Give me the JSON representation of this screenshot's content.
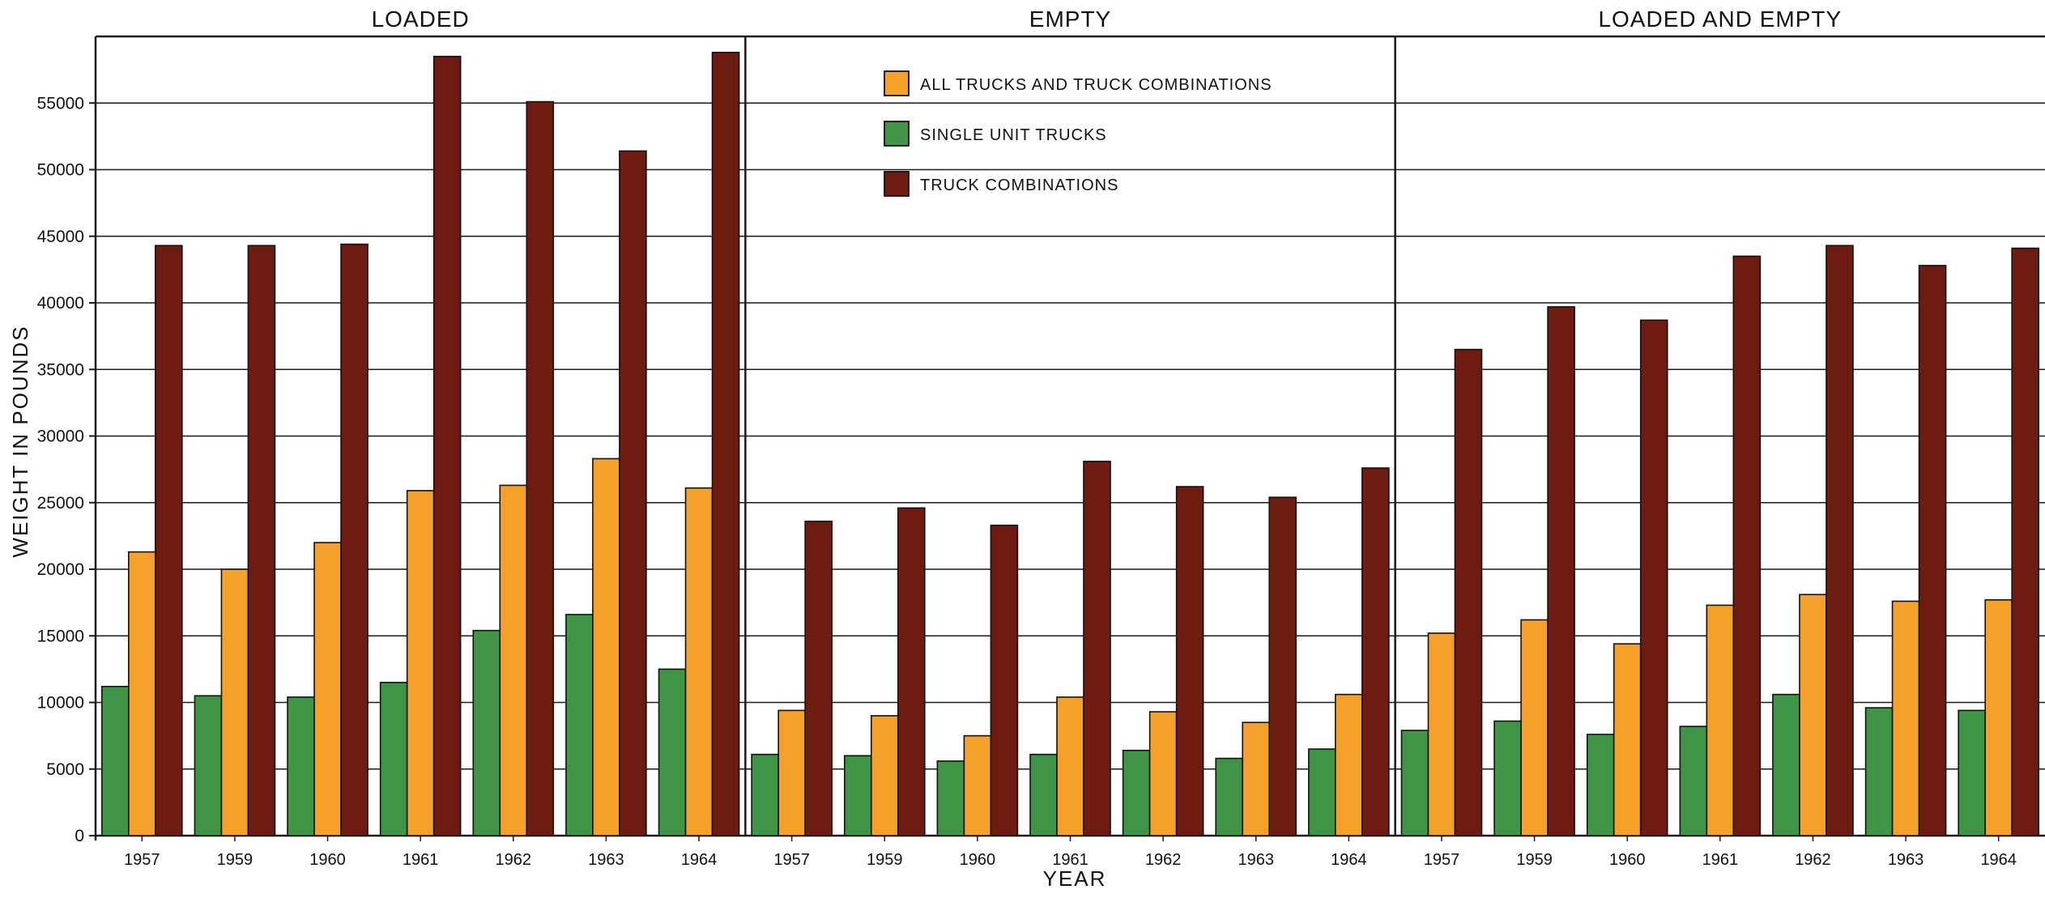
{
  "chart_data": {
    "type": "bar",
    "xlabel": "YEAR",
    "ylabel": "WEIGHT IN POUNDS",
    "ylim": [
      0,
      60000
    ],
    "yticks": [
      0,
      5000,
      10000,
      15000,
      20000,
      25000,
      30000,
      35000,
      40000,
      45000,
      50000,
      55000
    ],
    "grid": "horizontal",
    "legend": {
      "placement": "top-center (inside EMPTY panel)",
      "entries": [
        "ALL TRUCKS AND TRUCK COMBINATIONS",
        "SINGLE UNIT TRUCKS",
        "TRUCK COMBINATIONS"
      ]
    },
    "colors": {
      "ALL TRUCKS AND TRUCK COMBINATIONS": "#f5a02a",
      "SINGLE UNIT TRUCKS": "#3f9446",
      "TRUCK COMBINATIONS": "#6e1c12"
    },
    "panels": [
      {
        "title": "LOADED",
        "categories": [
          "1957",
          "1959",
          "1960",
          "1961",
          "1962",
          "1963",
          "1964"
        ],
        "series": [
          {
            "name": "SINGLE UNIT TRUCKS",
            "values": [
              11200,
              10500,
              10400,
              11500,
              15400,
              16600,
              12500
            ]
          },
          {
            "name": "ALL TRUCKS AND TRUCK COMBINATIONS",
            "values": [
              21300,
              20000,
              22000,
              25900,
              26300,
              28300,
              26100
            ]
          },
          {
            "name": "TRUCK COMBINATIONS",
            "values": [
              44300,
              44300,
              44400,
              58500,
              55100,
              51400,
              58800
            ]
          }
        ]
      },
      {
        "title": "EMPTY",
        "categories": [
          "1957",
          "1959",
          "1960",
          "1961",
          "1962",
          "1963",
          "1964"
        ],
        "series": [
          {
            "name": "SINGLE UNIT TRUCKS",
            "values": [
              6100,
              6000,
              5600,
              6100,
              6400,
              5800,
              6500
            ]
          },
          {
            "name": "ALL TRUCKS AND TRUCK COMBINATIONS",
            "values": [
              9400,
              9000,
              7500,
              10400,
              9300,
              8500,
              10600
            ]
          },
          {
            "name": "TRUCK COMBINATIONS",
            "values": [
              23600,
              24600,
              23300,
              28100,
              26200,
              25400,
              27600
            ]
          }
        ]
      },
      {
        "title": "LOADED AND EMPTY",
        "categories": [
          "1957",
          "1959",
          "1960",
          "1961",
          "1962",
          "1963",
          "1964"
        ],
        "series": [
          {
            "name": "SINGLE UNIT TRUCKS",
            "values": [
              7900,
              8600,
              7600,
              8200,
              10600,
              9600,
              9400
            ]
          },
          {
            "name": "ALL TRUCKS AND TRUCK COMBINATIONS",
            "values": [
              15200,
              16200,
              14400,
              17300,
              18100,
              17600,
              17700
            ]
          },
          {
            "name": "TRUCK COMBINATIONS",
            "values": [
              36500,
              39700,
              38700,
              43500,
              44300,
              42800,
              44100
            ]
          }
        ]
      }
    ]
  }
}
